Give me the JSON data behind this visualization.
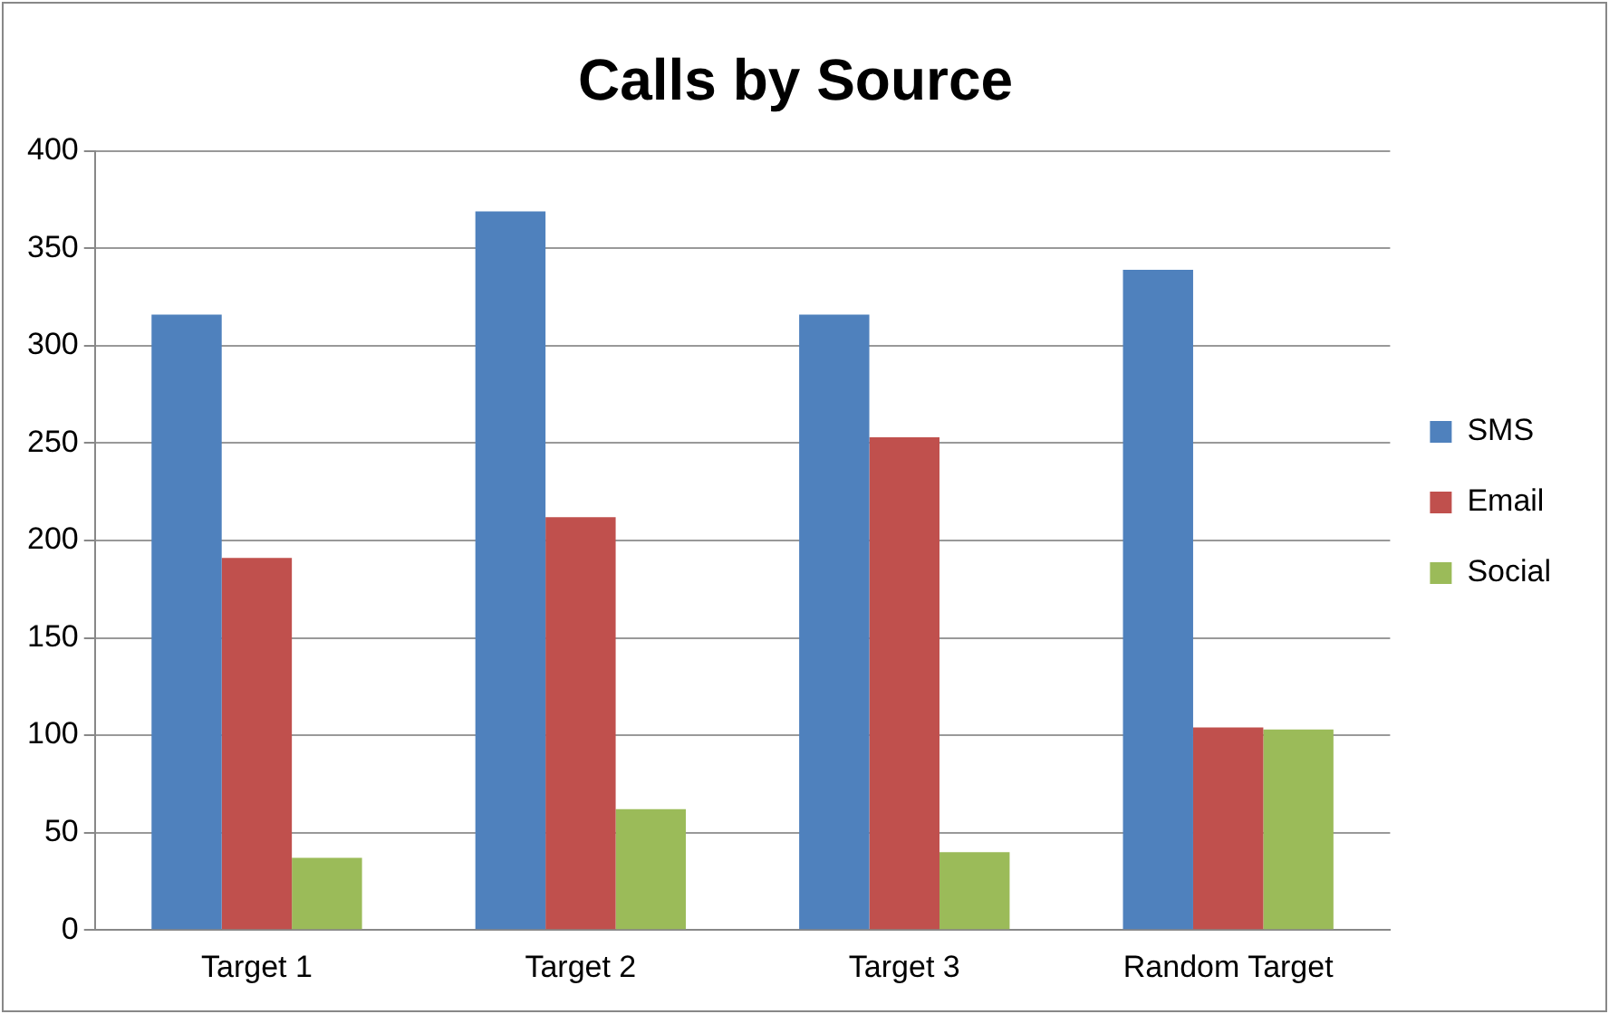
{
  "chart_data": {
    "type": "bar",
    "title": "Calls by Source",
    "categories": [
      "Target 1",
      "Target 2",
      "Target 3",
      "Random Target"
    ],
    "series": [
      {
        "name": "SMS",
        "color": "#4f81bd",
        "values": [
          316,
          369,
          316,
          339
        ]
      },
      {
        "name": "Email",
        "color": "#c0504d",
        "values": [
          191,
          212,
          253,
          104
        ]
      },
      {
        "name": "Social",
        "color": "#9bbb59",
        "values": [
          37,
          62,
          40,
          103
        ]
      }
    ],
    "ylim": [
      0,
      400
    ],
    "yticks": [
      0,
      50,
      100,
      150,
      200,
      250,
      300,
      350,
      400
    ],
    "grid": "y",
    "legend": "right"
  }
}
